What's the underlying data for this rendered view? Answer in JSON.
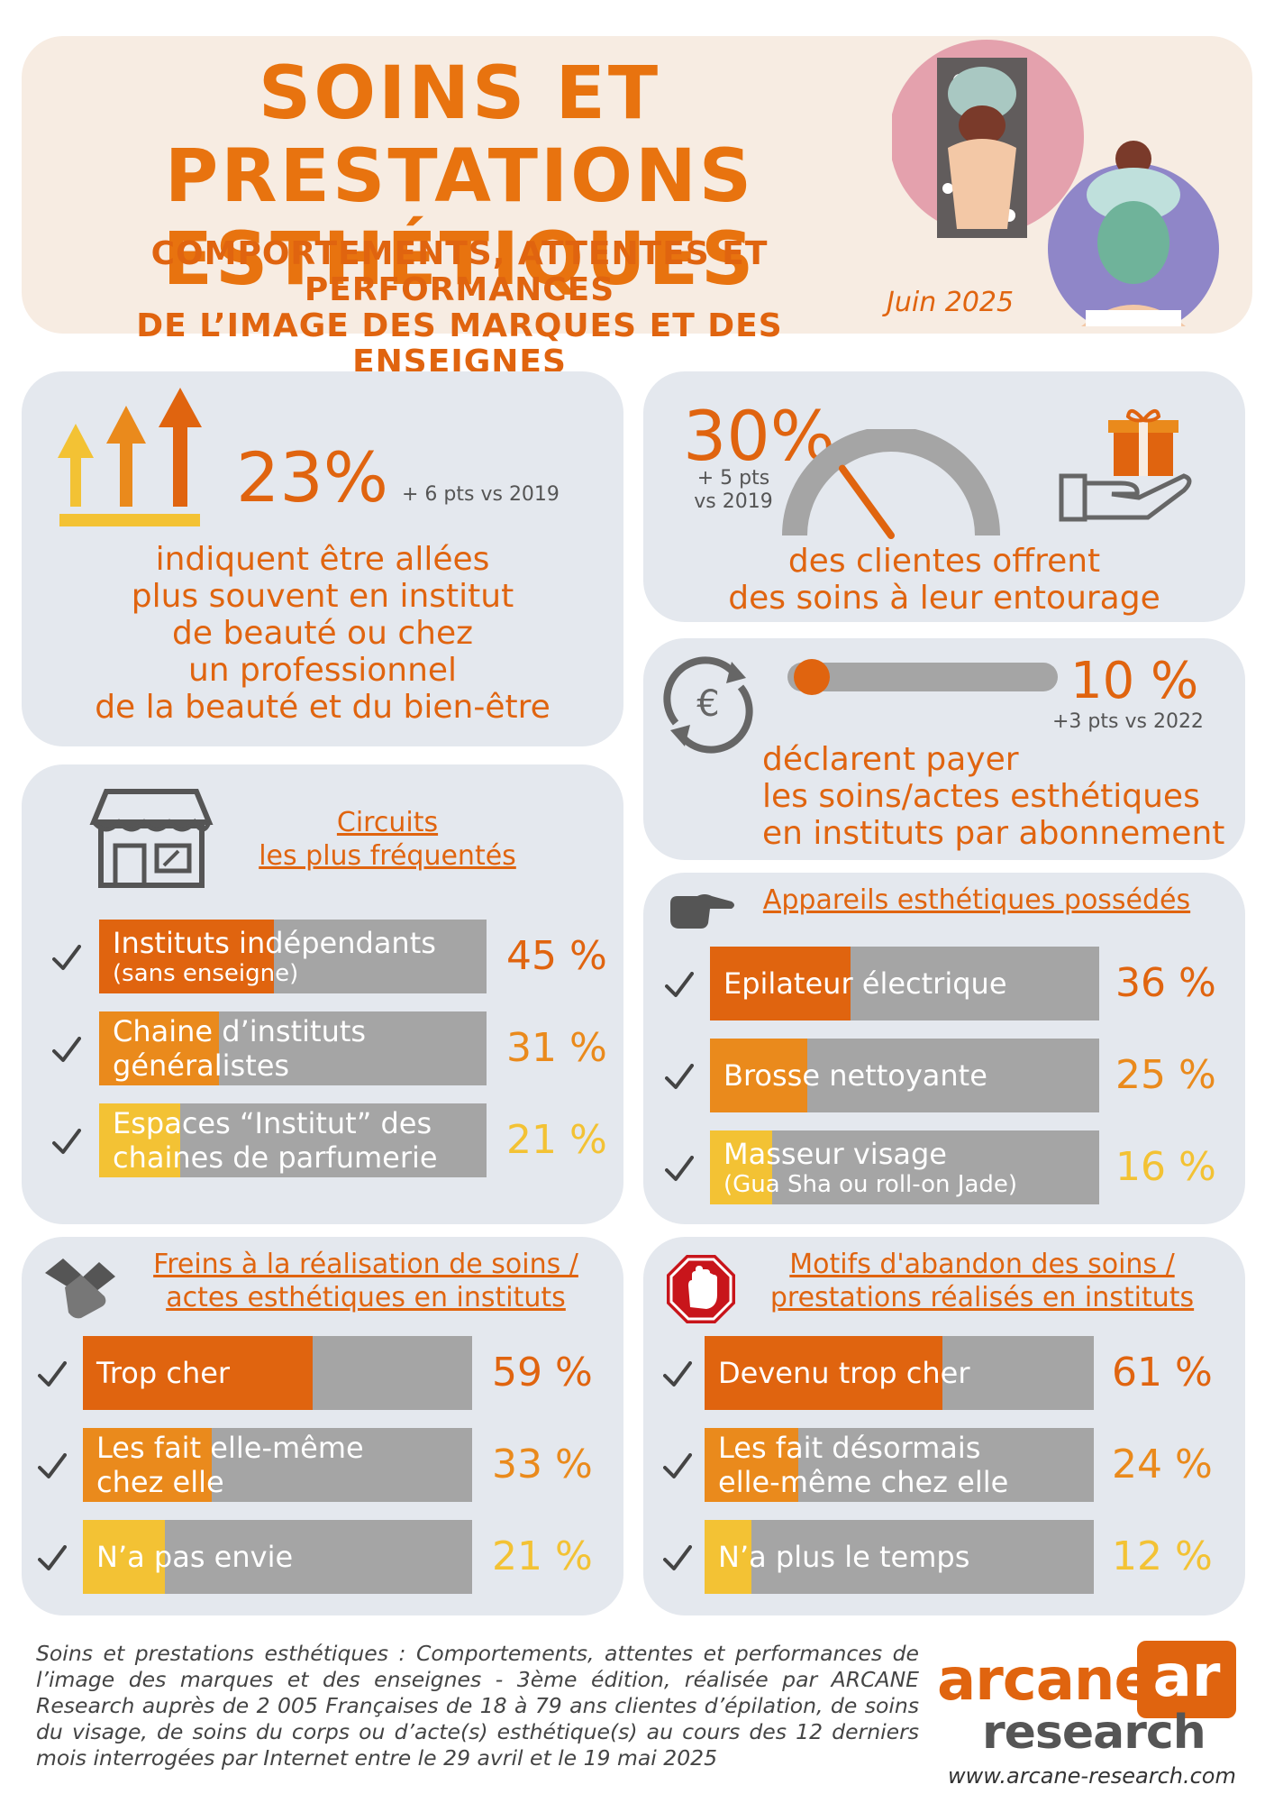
{
  "header": {
    "title_line1": "SOINS ET PRESTATIONS",
    "title_line2": "ESTHÉTIQUES",
    "subtitle_line1": "COMPORTEMENTS, ATTENTES ET PERFORMANCES",
    "subtitle_line2": "DE L’IMAGE DES MARQUES ET DES ENSEIGNES",
    "date": "Juin 2025"
  },
  "stat_institut": {
    "value": "23%",
    "change": "+ 6 pts vs 2019",
    "lines": [
      "indiquent être allées",
      "plus souvent en institut",
      "de beauté ou chez",
      "un professionnel",
      "de la beauté et du bien-être"
    ]
  },
  "stat_gift": {
    "value": "30%",
    "change_line1": "+ 5 pts",
    "change_line2": "vs 2019",
    "gauge_fraction": 0.3,
    "lines": [
      "des clientes offrent",
      "des soins à leur entourage"
    ]
  },
  "stat_subscription": {
    "value": "10 %",
    "change": "+3 pts vs 2022",
    "progress_fraction": 0.1,
    "lines": [
      "déclarent payer",
      "les soins/actes esthétiques",
      "en instituts par abonnement"
    ]
  },
  "circuits": {
    "heading_line1": "Circuits",
    "heading_line2": "les plus fréquentés",
    "items": [
      {
        "label": "Instituts indépendants",
        "sub": "(sans enseigne)",
        "pct": "45 %",
        "value": 45,
        "color": "#e0640f"
      },
      {
        "label": "Chaine d’instituts",
        "sub2": "généralistes",
        "pct": "31 %",
        "value": 31,
        "color": "#ea8a1c"
      },
      {
        "label": "Espaces “Institut” des",
        "sub2": "chaines de parfumerie",
        "pct": "21 %",
        "value": 21,
        "color": "#f3c234"
      }
    ]
  },
  "appareils": {
    "heading": "Appareils esthétiques possédés",
    "items": [
      {
        "label": "Epilateur électrique",
        "pct": "36 %",
        "value": 36,
        "color": "#e0640f"
      },
      {
        "label": "Brosse nettoyante",
        "pct": "25 %",
        "value": 25,
        "color": "#ea8a1c"
      },
      {
        "label": "Masseur visage",
        "sub": "(Gua Sha ou roll-on Jade)",
        "pct": "16 %",
        "value": 16,
        "color": "#f3c234"
      }
    ]
  },
  "freins": {
    "heading_line1": "Freins à la réalisation de soins /",
    "heading_line2": "actes esthétiques en instituts",
    "items": [
      {
        "label": "Trop cher",
        "pct": "59 %",
        "value": 59,
        "color": "#e0640f"
      },
      {
        "label": "Les fait elle-même",
        "sub2": "chez elle",
        "pct": "33 %",
        "value": 33,
        "color": "#ea8a1c"
      },
      {
        "label": "N’a pas envie",
        "pct": "21 %",
        "value": 21,
        "color": "#f3c234"
      }
    ]
  },
  "abandon": {
    "heading_line1": "Motifs d'abandon des soins /",
    "heading_line2": "prestations réalisés en instituts",
    "items": [
      {
        "label": "Devenu trop cher",
        "pct": "61 %",
        "value": 61,
        "color": "#e0640f"
      },
      {
        "label": "Les fait désormais",
        "sub2": "elle-même chez elle",
        "pct": "24 %",
        "value": 24,
        "color": "#ea8a1c"
      },
      {
        "label": "N’a plus le temps",
        "pct": "12 %",
        "value": 12,
        "color": "#f3c234"
      }
    ]
  },
  "footer": {
    "note": "Soins et prestations esthétiques : Comportements, attentes et performances de l’image des marques et des enseignes - 3ème édition, réalisée par ARCANE Research auprès de 2 005 Françaises de 18 à 79 ans clientes d’épilation, de soins du visage, de soins du corps ou d’acte(s) esthétique(s) au cours des 12 derniers mois interrogées par Internet entre le 29 avril et le 19 mai 2025",
    "logo_top": "arcane",
    "logo_bottom": "research",
    "logo_mark": "ar",
    "website": "www.arcane-research.com"
  },
  "colors": {
    "orange": "#e0640f",
    "mid_orange": "#ea8a1c",
    "yellow": "#f3c234",
    "gray_bar": "#a5a5a5",
    "panel": "#e4e8ee",
    "header_bg": "#f7ece2"
  }
}
